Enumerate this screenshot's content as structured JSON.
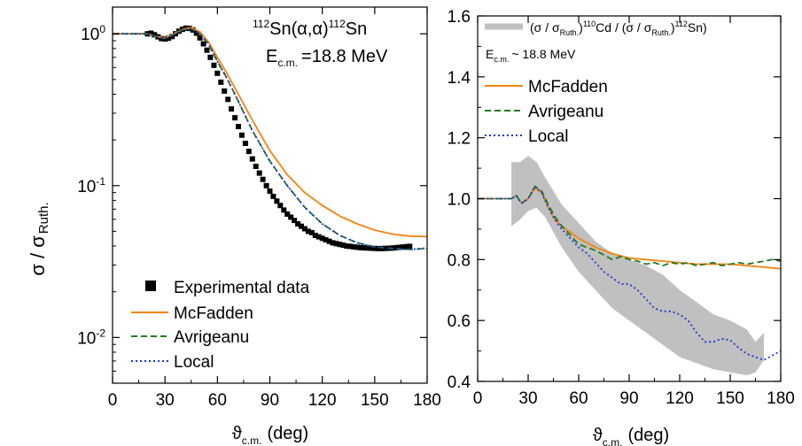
{
  "figure": {
    "ylabel_main": "σ / σ",
    "ylabel_sub": "Ruth."
  },
  "chart_data": [
    {
      "type": "line",
      "yscale": "log",
      "xlim": [
        0,
        180
      ],
      "ylim": [
        0.005,
        1.5
      ],
      "xticks": [
        0,
        30,
        60,
        90,
        120,
        150,
        180
      ],
      "yticks": [
        0.01,
        0.1,
        1
      ],
      "ytick_labels": [
        {
          "base": "10",
          "exp": "-2"
        },
        {
          "base": "10",
          "exp": "-1"
        },
        {
          "base": "10",
          "exp": "0"
        }
      ],
      "xlabel": {
        "main": "ϑ",
        "sub": "c.m.",
        "unit": "(deg)"
      },
      "annotation": {
        "reaction": {
          "pre": "112",
          "a": "Sn(α,α)",
          "b": "112",
          "c": "Sn"
        },
        "energy": {
          "main": "E",
          "sub": "c.m.",
          "value": "=18.8 MeV"
        }
      },
      "legend_position": "bottom-left",
      "legend": [
        "Experimental data",
        "McFadden",
        "Avrigeanu",
        "Local"
      ],
      "experimental": {
        "name": "Experimental data",
        "color": "#000000",
        "x": [
          20,
          22,
          24,
          26,
          28,
          30,
          32,
          34,
          36,
          38,
          40,
          42,
          44,
          46,
          48,
          50,
          52,
          54,
          56,
          58,
          60,
          62,
          64,
          66,
          68,
          70,
          72,
          74,
          76,
          78,
          80,
          82,
          84,
          86,
          88,
          90,
          92,
          94,
          96,
          98,
          100,
          102,
          104,
          106,
          108,
          110,
          112,
          114,
          116,
          118,
          120,
          122,
          124,
          126,
          128,
          130,
          132,
          134,
          136,
          138,
          140,
          142,
          144,
          146,
          148,
          150,
          152,
          154,
          156,
          158,
          160,
          162,
          164,
          166,
          168,
          170
        ],
        "y": [
          1.0,
          1.01,
          0.985,
          0.955,
          0.93,
          0.925,
          0.935,
          0.96,
          1.0,
          1.04,
          1.07,
          1.09,
          1.085,
          1.06,
          1.01,
          0.94,
          0.86,
          0.78,
          0.7,
          0.62,
          0.55,
          0.48,
          0.42,
          0.37,
          0.32,
          0.28,
          0.245,
          0.215,
          0.19,
          0.168,
          0.15,
          0.134,
          0.121,
          0.11,
          0.1,
          0.092,
          0.085,
          0.079,
          0.074,
          0.069,
          0.065,
          0.062,
          0.059,
          0.056,
          0.054,
          0.052,
          0.05,
          0.049,
          0.047,
          0.046,
          0.045,
          0.044,
          0.043,
          0.042,
          0.0415,
          0.041,
          0.0405,
          0.04,
          0.0398,
          0.0395,
          0.0393,
          0.039,
          0.0389,
          0.0388,
          0.0387,
          0.0386,
          0.0385,
          0.0385,
          0.0386,
          0.0387,
          0.0388,
          0.039,
          0.0392,
          0.0394,
          0.0396,
          0.0398
        ]
      },
      "series": [
        {
          "name": "McFadden",
          "color": "#f5830f",
          "style": "solid",
          "x": [
            0,
            15,
            20,
            25,
            30,
            35,
            40,
            45,
            50,
            55,
            60,
            65,
            70,
            80,
            90,
            100,
            110,
            120,
            130,
            140,
            150,
            160,
            170,
            180
          ],
          "y": [
            1.0,
            1.0,
            1.0,
            0.96,
            0.94,
            1.0,
            1.07,
            1.1,
            1.03,
            0.88,
            0.7,
            0.56,
            0.44,
            0.27,
            0.17,
            0.118,
            0.09,
            0.074,
            0.063,
            0.056,
            0.051,
            0.048,
            0.0465,
            0.0462
          ]
        },
        {
          "name": "Avrigeanu",
          "color": "#1f7a1f",
          "style": "dashed",
          "x": [
            0,
            15,
            20,
            25,
            30,
            35,
            40,
            45,
            50,
            55,
            60,
            65,
            70,
            80,
            90,
            100,
            110,
            120,
            130,
            140,
            150,
            160,
            170,
            180
          ],
          "y": [
            1.0,
            1.0,
            1.0,
            0.955,
            0.93,
            0.99,
            1.06,
            1.08,
            1.0,
            0.85,
            0.66,
            0.52,
            0.4,
            0.23,
            0.145,
            0.1,
            0.072,
            0.056,
            0.047,
            0.042,
            0.0395,
            0.0385,
            0.038,
            0.0385
          ]
        },
        {
          "name": "Local",
          "color": "#1a33dd",
          "style": "dotted",
          "x": [
            0,
            15,
            20,
            25,
            30,
            35,
            40,
            45,
            50,
            55,
            60,
            65,
            70,
            80,
            90,
            100,
            110,
            120,
            130,
            140,
            150,
            160,
            170,
            180
          ],
          "y": [
            1.0,
            1.0,
            1.0,
            0.955,
            0.93,
            0.99,
            1.06,
            1.08,
            1.0,
            0.85,
            0.66,
            0.52,
            0.4,
            0.23,
            0.145,
            0.1,
            0.072,
            0.056,
            0.047,
            0.042,
            0.0395,
            0.0385,
            0.038,
            0.0388
          ]
        }
      ]
    },
    {
      "type": "line",
      "yscale": "linear",
      "xlim": [
        0,
        180
      ],
      "ylim": [
        0.4,
        1.6
      ],
      "xticks": [
        0,
        30,
        60,
        90,
        120,
        150,
        180
      ],
      "yticks": [
        0.4,
        0.6,
        0.8,
        1.0,
        1.2,
        1.4,
        1.6
      ],
      "ytick_labels": [
        "0.4",
        "0.6",
        "0.8",
        "1.0",
        "1.2",
        "1.4",
        "1.6"
      ],
      "xlabel": {
        "main": "ϑ",
        "sub": "c.m.",
        "unit": "(deg)"
      },
      "annotation": {
        "energy": {
          "main": "E",
          "sub": "c.m.",
          "value": "~ 18.8 MeV"
        }
      },
      "legend_position": "top",
      "legend": [
        "band",
        "McFadden",
        "Avrigeanu",
        "Local"
      ],
      "band_label": {
        "p1": "(σ / σ",
        "s1": "Ruth.",
        "p2": ")",
        "e1": "110",
        "p3": "Cd / (σ / σ",
        "s2": "Ruth.",
        "p4": ")",
        "e2": "112",
        "p5": "Sn)"
      },
      "band": {
        "color": "#c0c0c0",
        "x": [
          20,
          25,
          30,
          35,
          40,
          50,
          60,
          70,
          80,
          90,
          100,
          110,
          120,
          130,
          140,
          150,
          160,
          165,
          170
        ],
        "upper": [
          1.12,
          1.12,
          1.14,
          1.12,
          1.07,
          0.98,
          0.92,
          0.86,
          0.82,
          0.8,
          0.78,
          0.75,
          0.7,
          0.66,
          0.62,
          0.6,
          0.57,
          0.53,
          0.56
        ],
        "lower": [
          0.91,
          0.93,
          0.96,
          0.97,
          0.94,
          0.84,
          0.76,
          0.7,
          0.64,
          0.6,
          0.56,
          0.52,
          0.48,
          0.46,
          0.44,
          0.43,
          0.42,
          0.43,
          0.47
        ]
      },
      "series": [
        {
          "name": "McFadden",
          "color": "#f5830f",
          "style": "solid",
          "x": [
            0,
            15,
            20,
            23,
            26,
            30,
            34,
            38,
            42,
            46,
            50,
            55,
            60,
            65,
            70,
            80,
            90,
            100,
            110,
            120,
            130,
            140,
            150,
            160,
            170,
            180
          ],
          "y": [
            1.0,
            1.0,
            1.0,
            1.01,
            0.985,
            1.0,
            1.035,
            1.02,
            0.97,
            0.93,
            0.91,
            0.89,
            0.87,
            0.855,
            0.84,
            0.82,
            0.805,
            0.8,
            0.795,
            0.79,
            0.785,
            0.785,
            0.785,
            0.78,
            0.775,
            0.77
          ]
        },
        {
          "name": "Avrigeanu",
          "color": "#1f7a1f",
          "style": "dashed",
          "x": [
            0,
            15,
            20,
            23,
            26,
            30,
            34,
            38,
            42,
            46,
            50,
            55,
            60,
            65,
            70,
            75,
            80,
            85,
            90,
            95,
            100,
            105,
            110,
            115,
            120,
            125,
            130,
            135,
            140,
            145,
            150,
            155,
            160,
            165,
            170,
            175,
            180
          ],
          "y": [
            1.0,
            1.0,
            1.0,
            1.01,
            0.985,
            1.0,
            1.04,
            1.025,
            0.98,
            0.94,
            0.91,
            0.88,
            0.85,
            0.84,
            0.83,
            0.815,
            0.8,
            0.81,
            0.8,
            0.795,
            0.785,
            0.79,
            0.78,
            0.79,
            0.785,
            0.79,
            0.78,
            0.785,
            0.79,
            0.78,
            0.785,
            0.79,
            0.785,
            0.79,
            0.795,
            0.8,
            0.795
          ]
        },
        {
          "name": "Local",
          "color": "#1a33dd",
          "style": "dotted",
          "x": [
            0,
            15,
            20,
            23,
            26,
            30,
            34,
            38,
            42,
            46,
            50,
            55,
            60,
            65,
            70,
            75,
            80,
            85,
            90,
            95,
            100,
            105,
            110,
            115,
            120,
            125,
            130,
            135,
            140,
            145,
            150,
            155,
            160,
            165,
            170,
            175,
            180
          ],
          "y": [
            1.0,
            1.0,
            1.0,
            1.01,
            0.985,
            1.0,
            1.04,
            1.02,
            0.97,
            0.93,
            0.9,
            0.87,
            0.84,
            0.82,
            0.79,
            0.76,
            0.74,
            0.72,
            0.72,
            0.7,
            0.67,
            0.64,
            0.63,
            0.63,
            0.62,
            0.6,
            0.56,
            0.53,
            0.53,
            0.54,
            0.535,
            0.51,
            0.49,
            0.48,
            0.47,
            0.485,
            0.5
          ]
        }
      ]
    }
  ]
}
